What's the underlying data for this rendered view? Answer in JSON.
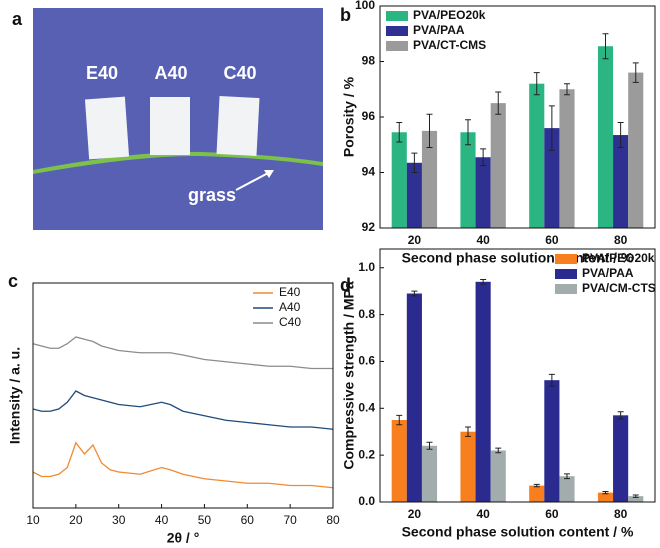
{
  "photo": {
    "panel": "a",
    "samples": [
      "E40",
      "A40",
      "C40"
    ],
    "annotation": "grass"
  },
  "chart_data": [
    {
      "type": "bar",
      "panel": "b",
      "xlabel": "Second phase solution content / %",
      "ylabel": "Porosity / %",
      "categories": [
        "20",
        "40",
        "60",
        "80"
      ],
      "ylim": [
        92,
        100
      ],
      "yticks": [
        92,
        94,
        96,
        98,
        100
      ],
      "legend": "upper left",
      "series": [
        {
          "name": "PVA/PEO20k",
          "color": "#2bb583",
          "values": [
            95.45,
            95.45,
            97.2,
            98.55
          ],
          "errors": [
            0.35,
            0.45,
            0.4,
            0.45
          ]
        },
        {
          "name": "PVA/PAA",
          "color": "#2e3192",
          "values": [
            94.35,
            94.55,
            95.6,
            95.35
          ],
          "errors": [
            0.35,
            0.3,
            0.8,
            0.45
          ]
        },
        {
          "name": "PVA/CT-CMS",
          "color": "#9a9b9a",
          "values": [
            95.5,
            96.5,
            97.0,
            97.6
          ],
          "errors": [
            0.6,
            0.4,
            0.2,
            0.35
          ]
        }
      ]
    },
    {
      "type": "line",
      "panel": "c",
      "xlabel": "2θ / °",
      "ylabel": "Intensity / a. u.",
      "x": [
        10,
        12,
        14,
        16,
        18,
        20,
        22,
        24,
        26,
        28,
        30,
        35,
        40,
        42,
        45,
        50,
        55,
        60,
        65,
        70,
        75,
        80
      ],
      "xlim": [
        10,
        80
      ],
      "xticks": [
        10,
        20,
        30,
        40,
        50,
        60,
        70,
        80
      ],
      "ylim": [
        0,
        10
      ],
      "legend": "upper right",
      "series": [
        {
          "name": "E40",
          "color": "#f08a30",
          "values": [
            1.6,
            1.4,
            1.4,
            1.5,
            1.8,
            2.9,
            2.4,
            2.8,
            2.0,
            1.7,
            1.6,
            1.5,
            1.8,
            1.7,
            1.5,
            1.3,
            1.2,
            1.1,
            1.1,
            1.0,
            1.0,
            0.9
          ]
        },
        {
          "name": "A40",
          "color": "#1f4a7a",
          "values": [
            4.4,
            4.3,
            4.3,
            4.4,
            4.7,
            5.2,
            5.0,
            4.9,
            4.8,
            4.7,
            4.6,
            4.5,
            4.7,
            4.6,
            4.3,
            4.1,
            3.9,
            3.8,
            3.7,
            3.6,
            3.6,
            3.5
          ]
        },
        {
          "name": "C40",
          "color": "#8c8c8c",
          "values": [
            7.3,
            7.2,
            7.1,
            7.1,
            7.3,
            7.6,
            7.5,
            7.4,
            7.2,
            7.1,
            7.0,
            6.9,
            6.9,
            6.9,
            6.8,
            6.6,
            6.5,
            6.4,
            6.3,
            6.3,
            6.2,
            6.2
          ]
        }
      ]
    },
    {
      "type": "bar",
      "panel": "d",
      "xlabel": "Second phase solution content / %",
      "ylabel": "Compressive strength / MPa",
      "categories": [
        "20",
        "40",
        "60",
        "80"
      ],
      "ylim": [
        0,
        1.08
      ],
      "yticks": [
        {
          "value": 0,
          "label": "0.0"
        },
        0.2,
        0.4,
        0.6,
        0.8,
        {
          "value": 1,
          "label": "1.0"
        }
      ],
      "legend": "upper right",
      "series": [
        {
          "name": "PVA/PEO20k",
          "color": "#f77f1d",
          "values": [
            0.35,
            0.3,
            0.07,
            0.04
          ],
          "errors": [
            0.02,
            0.02,
            0.005,
            0.005
          ]
        },
        {
          "name": "PVA/PAA",
          "color": "#2a2a8f",
          "values": [
            0.89,
            0.94,
            0.52,
            0.37
          ],
          "errors": [
            0.01,
            0.01,
            0.025,
            0.015
          ]
        },
        {
          "name": "PVA/CM-CTS",
          "color": "#a3acac",
          "values": [
            0.24,
            0.22,
            0.11,
            0.025
          ],
          "errors": [
            0.015,
            0.01,
            0.01,
            0.005
          ]
        }
      ]
    }
  ]
}
